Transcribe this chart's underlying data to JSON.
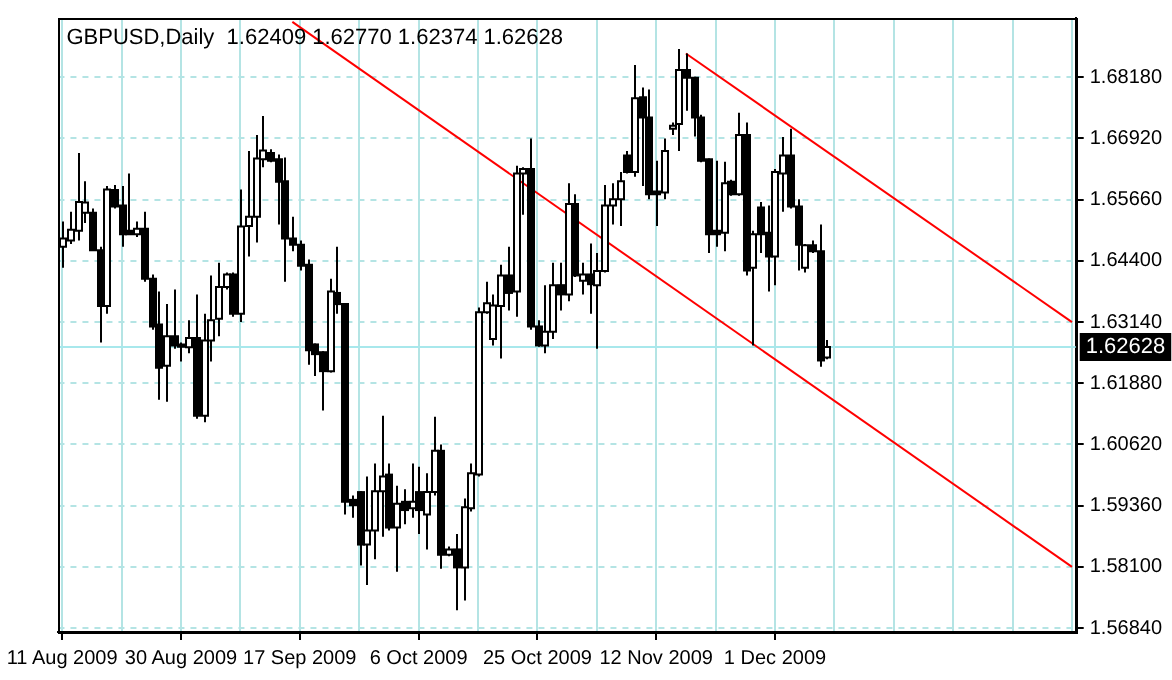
{
  "chart_data": {
    "type": "candlestick",
    "title": "GBPUSD,Daily  1.62409 1.62770 1.62374 1.62628",
    "categories": [
      "11 Aug 2009",
      null,
      null,
      null,
      null,
      null,
      null,
      null,
      null,
      null,
      null,
      null,
      null,
      null,
      null,
      null,
      "30 Aug 2009",
      null,
      null,
      null,
      null,
      null,
      null,
      null,
      null,
      null,
      null,
      null,
      null,
      null,
      null,
      null,
      "17 Sep 2009",
      null,
      null,
      null,
      null,
      null,
      null,
      null,
      null,
      null,
      null,
      null,
      null,
      null,
      null,
      null,
      "6 Oct 2009",
      null,
      null,
      null,
      null,
      null,
      null,
      null,
      null,
      null,
      null,
      null,
      null,
      null,
      null,
      null,
      "25 Oct 2009",
      null,
      null,
      null,
      null,
      null,
      null,
      null,
      null,
      null,
      null,
      null,
      null,
      null,
      null,
      null,
      "12 Nov 2009",
      null,
      null,
      null,
      null,
      null,
      null,
      null,
      null,
      null,
      null,
      null,
      null,
      null,
      null,
      null,
      "1 Dec 2009",
      null,
      null,
      null,
      null,
      null,
      null,
      null,
      null,
      null,
      null,
      null,
      null,
      null,
      null,
      null,
      null,
      null,
      null,
      null,
      null,
      null,
      null,
      null,
      null,
      null,
      null,
      null,
      null,
      null,
      null,
      null,
      null,
      null,
      null,
      null,
      null,
      null,
      null,
      null,
      null
    ],
    "ohlc": [
      [
        1.6469,
        1.6521,
        1.6426,
        1.6486
      ],
      [
        1.6482,
        1.6541,
        1.6475,
        1.6504
      ],
      [
        1.6502,
        1.6662,
        1.6482,
        1.6561
      ],
      [
        1.6539,
        1.6604,
        1.6518,
        1.656
      ],
      [
        1.6539,
        1.6548,
        1.6462,
        1.6462
      ],
      [
        1.6462,
        1.6469,
        1.6272,
        1.6347
      ],
      [
        1.6347,
        1.6594,
        1.6331,
        1.6587
      ],
      [
        1.6586,
        1.6596,
        1.6548,
        1.6552
      ],
      [
        1.6554,
        1.6594,
        1.6469,
        1.6495
      ],
      [
        1.6502,
        1.662,
        1.6495,
        1.6495
      ],
      [
        1.6495,
        1.6521,
        1.6489,
        1.6506
      ],
      [
        1.6506,
        1.6541,
        1.6397,
        1.6403
      ],
      [
        1.6403,
        1.6412,
        1.6298,
        1.6305
      ],
      [
        1.6309,
        1.6377,
        1.6154,
        1.622
      ],
      [
        1.6224,
        1.6351,
        1.615,
        1.6285
      ],
      [
        1.6285,
        1.6381,
        1.6259,
        1.6266
      ],
      [
        1.6268,
        1.6272,
        1.6233,
        1.6263
      ],
      [
        1.6262,
        1.6318,
        1.625,
        1.6281
      ],
      [
        1.6281,
        1.6371,
        1.6115,
        1.6121
      ],
      [
        1.6121,
        1.6331,
        1.6108,
        1.6276
      ],
      [
        1.6276,
        1.641,
        1.6233,
        1.6318
      ],
      [
        1.6321,
        1.6436,
        1.6285,
        1.6386
      ],
      [
        1.6386,
        1.6416,
        1.6381,
        1.6412
      ],
      [
        1.6412,
        1.6416,
        1.6325,
        1.6331
      ],
      [
        1.6331,
        1.6587,
        1.6314,
        1.6511
      ],
      [
        1.6512,
        1.6666,
        1.6449,
        1.6531
      ],
      [
        1.6531,
        1.6699,
        1.6478,
        1.6651
      ],
      [
        1.6649,
        1.6738,
        1.6633,
        1.6667
      ],
      [
        1.6662,
        1.667,
        1.6643,
        1.6646
      ],
      [
        1.6649,
        1.6659,
        1.6515,
        1.6603
      ],
      [
        1.6604,
        1.6653,
        1.6397,
        1.6486
      ],
      [
        1.6486,
        1.6531,
        1.646,
        1.6473
      ],
      [
        1.6473,
        1.6482,
        1.642,
        1.643
      ],
      [
        1.6432,
        1.6443,
        1.6226,
        1.6256
      ],
      [
        1.6268,
        1.627,
        1.6203,
        1.6248
      ],
      [
        1.6252,
        1.6254,
        1.6132,
        1.6213
      ],
      [
        1.6213,
        1.6403,
        1.621,
        1.6377
      ],
      [
        1.6374,
        1.6469,
        1.6331,
        1.6351
      ],
      [
        1.6351,
        1.6353,
        1.5918,
        1.5944
      ],
      [
        1.5948,
        1.5957,
        1.5911,
        1.5937
      ],
      [
        1.5964,
        1.5966,
        1.5813,
        1.5856
      ],
      [
        1.5856,
        1.5996,
        1.5773,
        1.5885
      ],
      [
        1.5885,
        1.6023,
        1.5826,
        1.5966
      ],
      [
        1.5966,
        1.6121,
        1.5872,
        1.5996
      ],
      [
        1.6,
        1.6023,
        1.5885,
        1.5891
      ],
      [
        1.5891,
        1.5977,
        1.58,
        1.594
      ],
      [
        1.5944,
        1.597,
        1.5898,
        1.5927
      ],
      [
        1.5931,
        1.6023,
        1.5911,
        1.5944
      ],
      [
        1.5964,
        1.6016,
        1.5878,
        1.5927
      ],
      [
        1.5918,
        1.6003,
        1.5846,
        1.5964
      ],
      [
        1.5964,
        1.6119,
        1.5957,
        1.6049
      ],
      [
        1.6049,
        1.6062,
        1.5806,
        1.5835
      ],
      [
        1.5835,
        1.5852,
        1.5832,
        1.5846
      ],
      [
        1.5846,
        1.5878,
        1.5721,
        1.5809
      ],
      [
        1.5809,
        1.5951,
        1.5741,
        1.5933
      ],
      [
        1.5931,
        1.6023,
        1.5924,
        1.6003
      ],
      [
        1.6,
        1.6344,
        1.5996,
        1.6334
      ],
      [
        1.6334,
        1.6397,
        1.6331,
        1.6353
      ],
      [
        1.6279,
        1.6371,
        1.6266,
        1.6348
      ],
      [
        1.6347,
        1.6432,
        1.6239,
        1.641
      ],
      [
        1.641,
        1.6469,
        1.6338,
        1.6374
      ],
      [
        1.6377,
        1.6636,
        1.6325,
        1.662
      ],
      [
        1.662,
        1.6633,
        1.6535,
        1.6629
      ],
      [
        1.6629,
        1.6692,
        1.6298,
        1.6305
      ],
      [
        1.6305,
        1.6318,
        1.6263,
        1.6266
      ],
      [
        1.6266,
        1.639,
        1.625,
        1.6294
      ],
      [
        1.6294,
        1.6436,
        1.6279,
        1.639
      ],
      [
        1.639,
        1.6436,
        1.6338,
        1.6371
      ],
      [
        1.6371,
        1.66,
        1.6357,
        1.6557
      ],
      [
        1.6557,
        1.6577,
        1.6407,
        1.641
      ],
      [
        1.6399,
        1.6436,
        1.6371,
        1.6412
      ],
      [
        1.6412,
        1.6476,
        1.6331,
        1.6392
      ],
      [
        1.639,
        1.6456,
        1.6259,
        1.6419
      ],
      [
        1.6419,
        1.6596,
        1.6416,
        1.6554
      ],
      [
        1.6554,
        1.66,
        1.6515,
        1.6567
      ],
      [
        1.6567,
        1.6623,
        1.6512,
        1.6604
      ],
      [
        1.6657,
        1.6666,
        1.662,
        1.6623
      ],
      [
        1.6623,
        1.6843,
        1.6613,
        1.6775
      ],
      [
        1.6777,
        1.6797,
        1.6594,
        1.6735
      ],
      [
        1.6735,
        1.6793,
        1.6567,
        1.6577
      ],
      [
        1.6583,
        1.6646,
        1.6512,
        1.6577
      ],
      [
        1.6581,
        1.6692,
        1.6567,
        1.6666
      ],
      [
        1.6712,
        1.6725,
        1.6699,
        1.6718
      ],
      [
        1.6722,
        1.6876,
        1.6666,
        1.6833
      ],
      [
        1.6833,
        1.6867,
        1.6749,
        1.6817
      ],
      [
        1.6817,
        1.6819,
        1.6696,
        1.6735
      ],
      [
        1.6735,
        1.6741,
        1.6643,
        1.6646
      ],
      [
        1.6649,
        1.6651,
        1.6456,
        1.6495
      ],
      [
        1.6502,
        1.6646,
        1.6469,
        1.6495
      ],
      [
        1.6498,
        1.6644,
        1.646,
        1.66
      ],
      [
        1.6603,
        1.6607,
        1.6574,
        1.6577
      ],
      [
        1.6577,
        1.6745,
        1.6574,
        1.6699
      ],
      [
        1.6699,
        1.6725,
        1.641,
        1.642
      ],
      [
        1.6426,
        1.6502,
        1.6266,
        1.6495
      ],
      [
        1.655,
        1.6561,
        1.6456,
        1.6495
      ],
      [
        1.6498,
        1.6554,
        1.6377,
        1.6449
      ],
      [
        1.6449,
        1.6629,
        1.639,
        1.6623
      ],
      [
        1.662,
        1.6695,
        1.6541,
        1.6657
      ],
      [
        1.6657,
        1.6712,
        1.6548,
        1.6552
      ],
      [
        1.6552,
        1.6567,
        1.642,
        1.6473
      ],
      [
        1.6426,
        1.6475,
        1.6416,
        1.6472
      ],
      [
        1.6472,
        1.6482,
        1.6456,
        1.646
      ],
      [
        1.646,
        1.6515,
        1.6222,
        1.6235
      ],
      [
        1.62409,
        1.6277,
        1.62374,
        1.62628
      ],
      null,
      null,
      null,
      null,
      null,
      null,
      null,
      null,
      null,
      null,
      null,
      null,
      null,
      null,
      null,
      null,
      null,
      null,
      null,
      null,
      null,
      null,
      null,
      null,
      null,
      null,
      null,
      null,
      null,
      null,
      null,
      null,
      null
    ],
    "series": [
      {
        "type": "line",
        "color": "#ff0000",
        "values": [
          null,
          null,
          null,
          null,
          null,
          null,
          null,
          null,
          null,
          null,
          null,
          null,
          null,
          null,
          null,
          null,
          null,
          null,
          null,
          null,
          null,
          null,
          null,
          null,
          null,
          null,
          null,
          null,
          null,
          null,
          null,
          1.6932,
          null,
          null,
          null,
          null,
          null,
          null,
          null,
          null,
          null,
          null,
          null,
          null,
          null,
          null,
          null,
          null,
          null,
          null,
          null,
          null,
          null,
          null,
          null,
          null,
          null,
          null,
          null,
          null,
          null,
          null,
          null,
          null,
          null,
          null,
          null,
          null,
          null,
          null,
          null,
          null,
          null,
          null,
          null,
          null,
          null,
          null,
          null,
          null,
          null,
          null,
          null,
          null,
          null,
          null,
          null,
          null,
          null,
          null,
          null,
          null,
          null,
          null,
          null,
          null,
          null,
          null,
          null,
          null,
          null,
          null,
          null,
          null,
          null,
          null,
          null,
          null,
          null,
          null,
          null,
          null,
          null,
          null,
          null,
          null,
          null,
          null,
          null,
          null,
          null,
          null,
          null,
          null,
          null,
          null,
          null,
          null,
          null,
          null,
          null,
          null,
          null,
          null,
          null,
          null,
          1.581
        ]
      },
      {
        "type": "line",
        "color": "#ff0000",
        "values": [
          null,
          null,
          null,
          null,
          null,
          null,
          null,
          null,
          null,
          null,
          null,
          null,
          null,
          null,
          null,
          null,
          null,
          null,
          null,
          null,
          null,
          null,
          null,
          null,
          null,
          null,
          null,
          null,
          null,
          null,
          null,
          null,
          null,
          null,
          null,
          null,
          null,
          null,
          null,
          null,
          null,
          null,
          null,
          null,
          null,
          null,
          null,
          null,
          null,
          null,
          null,
          null,
          null,
          null,
          null,
          null,
          null,
          null,
          null,
          null,
          null,
          null,
          null,
          null,
          null,
          null,
          null,
          null,
          null,
          null,
          null,
          null,
          null,
          null,
          null,
          null,
          null,
          null,
          null,
          null,
          null,
          null,
          null,
          null,
          1.6867,
          null,
          null,
          null,
          null,
          null,
          null,
          null,
          null,
          null,
          null,
          null,
          null,
          null,
          null,
          null,
          null,
          null,
          null,
          null,
          null,
          null,
          null,
          null,
          null,
          null,
          null,
          null,
          null,
          null,
          null,
          null,
          null,
          null,
          null,
          null,
          null,
          null,
          null,
          null,
          null,
          null,
          null,
          null,
          null,
          null,
          null,
          null,
          null,
          null,
          null,
          null,
          1.6314
        ]
      }
    ],
    "ylim": [
      1.5676,
      1.694
    ],
    "yticks": [
      {
        "value": 1.5684,
        "label": "1.56840"
      },
      {
        "value": 1.581,
        "label": "1.58100"
      },
      {
        "value": 1.5936,
        "label": "1.59360"
      },
      {
        "value": 1.6062,
        "label": "1.60620"
      },
      {
        "value": 1.6188,
        "label": "1.61880"
      },
      {
        "value": 1.6314,
        "label": "1.63140"
      },
      {
        "value": 1.644,
        "label": "1.64400"
      },
      {
        "value": 1.6566,
        "label": "1.65660"
      },
      {
        "value": 1.6692,
        "label": "1.66920"
      },
      {
        "value": 1.6818,
        "label": "1.68180"
      }
    ],
    "ref_lines": [
      {
        "axis": "y",
        "value": 1.62628,
        "label": "1.62628",
        "color": "#a8e8ec"
      }
    ],
    "grid": true,
    "legend": false
  }
}
